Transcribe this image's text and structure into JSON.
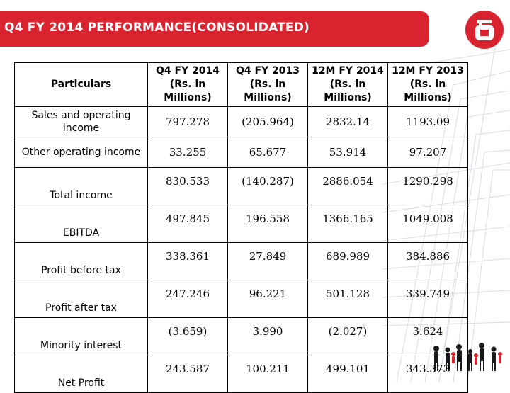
{
  "header": {
    "title": "Q4 FY 2014 PERFORMANCE(CONSOLIDATED)"
  },
  "colors": {
    "brand_red": "#d9232e",
    "text": "#000000"
  },
  "table": {
    "columns": [
      "Particulars",
      "Q4 FY 2014 (Rs. in Millions)",
      "Q4 FY 2013 (Rs. in Millions)",
      "12M FY 2014 (Rs. in Millions)",
      "12M FY 2013 (Rs. in Millions)"
    ],
    "rows": [
      {
        "label": "Sales and operating income",
        "values": [
          "797.278",
          "(205.964)",
          "2832.14",
          "1193.09"
        ]
      },
      {
        "label": "Other operating income",
        "values": [
          "33.255",
          "65.677",
          "53.914",
          "97.207"
        ]
      },
      {
        "label": "Total income",
        "values": [
          "830.533",
          "(140.287)",
          "2886.054",
          "1290.298"
        ]
      },
      {
        "label": "EBITDA",
        "values": [
          "497.845",
          "196.558",
          "1366.165",
          "1049.008"
        ]
      },
      {
        "label": "Profit before tax",
        "values": [
          "338.361",
          "27.849",
          "689.989",
          "384.886"
        ]
      },
      {
        "label": "Profit after tax",
        "values": [
          "247.246",
          "96.221",
          "501.128",
          "339.749"
        ]
      },
      {
        "label": "Minority interest",
        "values": [
          "(3.659)",
          "3.990",
          "(2.027)",
          "3.624"
        ]
      },
      {
        "label": "Net Profit",
        "values": [
          "243.587",
          "100.211",
          "499.101",
          "343.373"
        ]
      }
    ]
  }
}
